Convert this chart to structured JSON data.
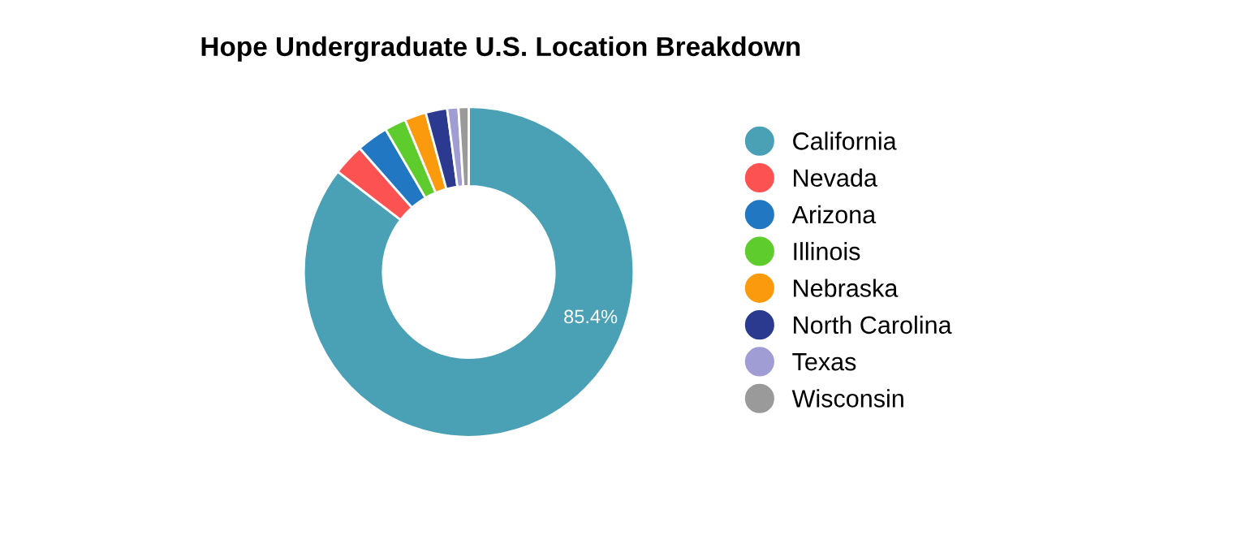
{
  "chart_data": {
    "type": "donut",
    "title": "Hope Undergraduate U.S. Location Breakdown",
    "categories": [
      "California",
      "Nevada",
      "Arizona",
      "Illinois",
      "Nebraska",
      "North Carolina",
      "Texas",
      "Wisconsin"
    ],
    "values": [
      85.4,
      3.1,
      3.1,
      2.1,
      2.1,
      2.1,
      1.1,
      1.0
    ],
    "colors": [
      "#4aa0b5",
      "#fc5252",
      "#2277c2",
      "#5fcc2e",
      "#fb9a0c",
      "#2b3a8f",
      "#9f9dd3",
      "#9a9a9a"
    ],
    "value_labels": [
      "85.4%",
      null,
      null,
      null,
      null,
      null,
      null,
      null
    ],
    "legend": "right"
  }
}
